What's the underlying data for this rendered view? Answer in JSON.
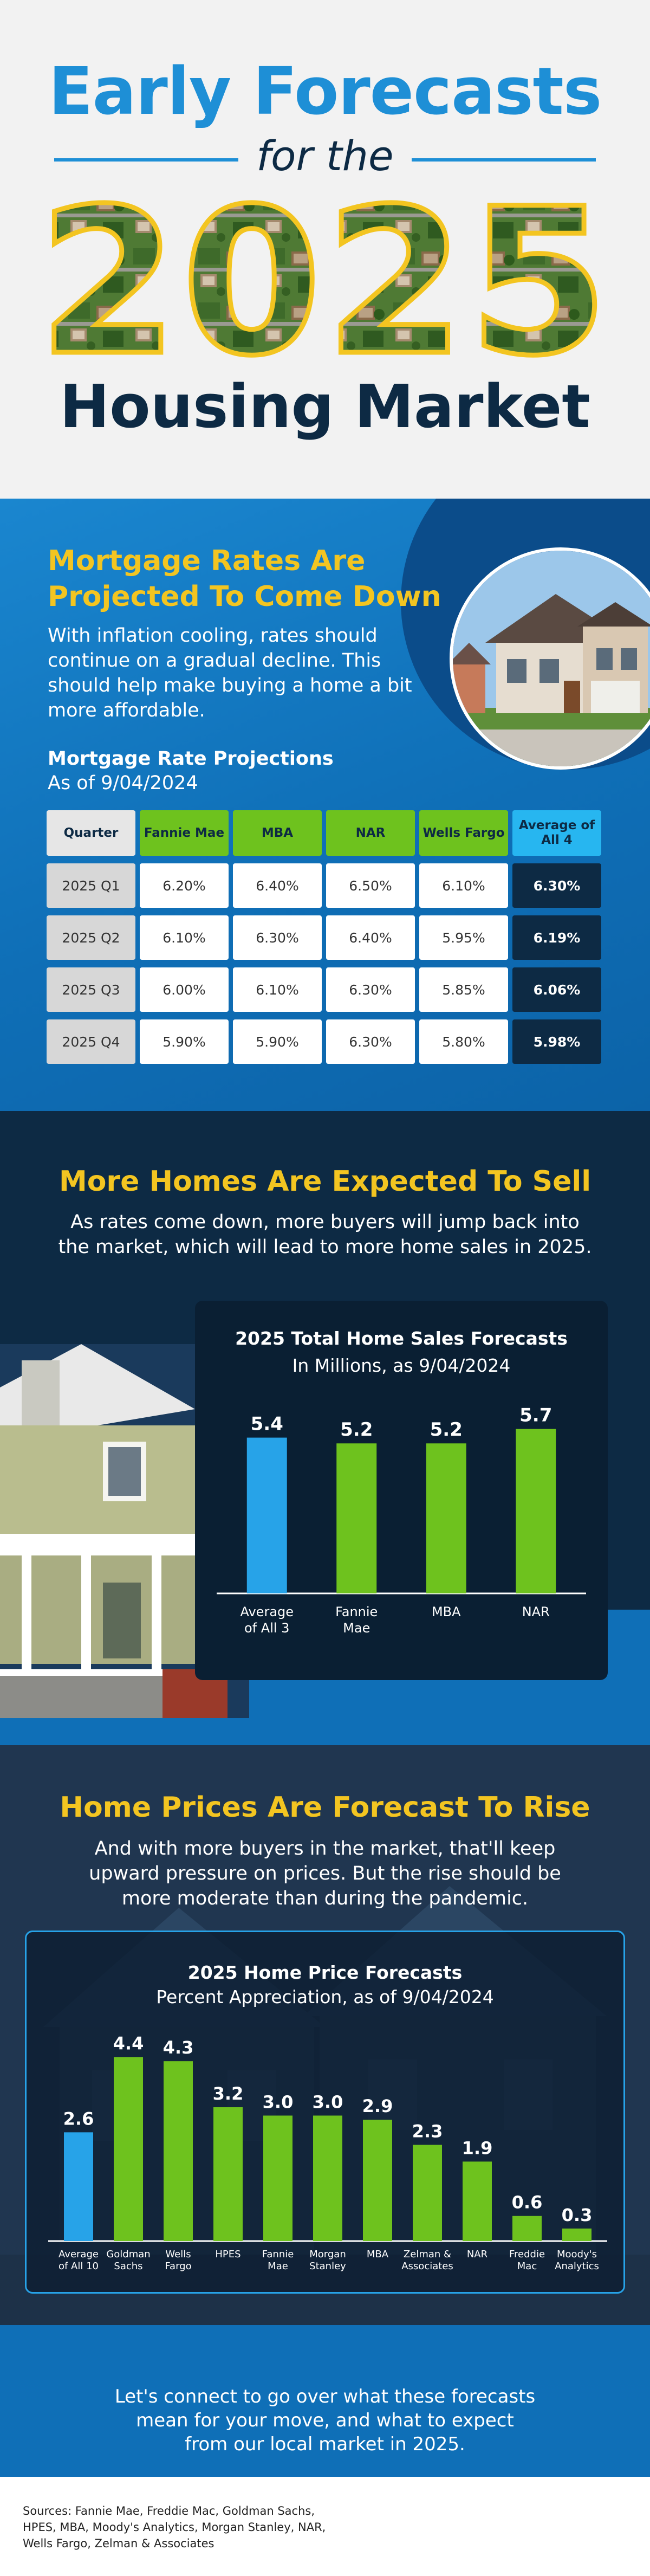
{
  "header": {
    "line1": "Early Forecasts",
    "line2": "for the",
    "year": "2025",
    "line3": "Housing Market"
  },
  "mortgage": {
    "title_line1": "Mortgage Rates Are",
    "title_line2": "Projected To Come Down",
    "body": "With inflation cooling, rates should continue on a gradual decline. This should help make buying a home a bit more affordable.",
    "table_title": "Mortgage Rate Projections",
    "table_subtitle": "As of 9/04/2024",
    "columns": [
      "Quarter",
      "Fannie Mae",
      "MBA",
      "NAR",
      "Wells Fargo",
      "Average of All 4"
    ],
    "rows": [
      [
        "2025 Q1",
        "6.20%",
        "6.40%",
        "6.50%",
        "6.10%",
        "6.30%"
      ],
      [
        "2025 Q2",
        "6.10%",
        "6.30%",
        "6.40%",
        "5.95%",
        "6.19%"
      ],
      [
        "2025 Q3",
        "6.00%",
        "6.10%",
        "6.30%",
        "5.85%",
        "6.06%"
      ],
      [
        "2025 Q4",
        "5.90%",
        "5.90%",
        "6.30%",
        "5.80%",
        "5.98%"
      ]
    ]
  },
  "sales": {
    "title": "More Homes Are Expected To Sell",
    "body_line1": "As rates come down, more buyers will jump back into",
    "body_line2": "the market, which will lead to more home sales in 2025."
  },
  "prices": {
    "title": "Home Prices Are Forecast To Rise",
    "body_line1": "And with more buyers in the market, that'll keep",
    "body_line2": "upward pressure on prices. But the rise should be",
    "body_line3": "more moderate than during the pandemic."
  },
  "footer": {
    "cta_line1": "Let's connect to go over what these forecasts",
    "cta_line2": "mean for your move, and what to expect",
    "cta_line3": "from our local market in 2025.",
    "sources_line1": "Sources: Fannie Mae, Freddie Mac, Goldman Sachs,",
    "sources_line2": "HPES, MBA, Moody's Analytics, Morgan Stanley, NAR,",
    "sources_line3": "Wells Fargo, Zelman & Associates"
  },
  "colors": {
    "average": "#27a3e8",
    "source": "#6ec21e",
    "accent_yellow": "#f3c521",
    "navy": "#0d2a44"
  },
  "chart_data": [
    {
      "type": "bar",
      "title": "2025 Total Home Sales Forecasts",
      "subtitle": "In Millions, as 9/04/2024",
      "categories": [
        [
          "Average",
          "of All 3"
        ],
        [
          "Fannie",
          "Mae"
        ],
        [
          "MBA"
        ],
        [
          "NAR"
        ]
      ],
      "values": [
        5.4,
        5.2,
        5.2,
        5.7
      ],
      "value_labels": [
        "5.4",
        "5.2",
        "5.2",
        "5.7"
      ],
      "highlight_index": 0,
      "ylim": [
        0,
        6.2
      ]
    },
    {
      "type": "bar",
      "title": "2025 Home Price Forecasts",
      "subtitle": "Percent Appreciation, as of 9/04/2024",
      "categories": [
        [
          "Average",
          "of All 10"
        ],
        [
          "Goldman",
          "Sachs"
        ],
        [
          "Wells",
          "Fargo"
        ],
        [
          "HPES"
        ],
        [
          "Fannie",
          "Mae"
        ],
        [
          "Morgan",
          "Stanley"
        ],
        [
          "MBA"
        ],
        [
          "Zelman &",
          "Associates"
        ],
        [
          "NAR"
        ],
        [
          "Freddie",
          "Mac"
        ],
        [
          "Moody's",
          "Analytics"
        ]
      ],
      "values": [
        2.6,
        4.4,
        4.3,
        3.2,
        3.0,
        3.0,
        2.9,
        2.3,
        1.9,
        0.6,
        0.3
      ],
      "value_labels": [
        "2.6",
        "4.4",
        "4.3",
        "3.2",
        "3.0",
        "3.0",
        "2.9",
        "2.3",
        "1.9",
        "0.6",
        "0.3"
      ],
      "highlight_index": 0,
      "ylim": [
        0,
        4.6
      ]
    }
  ]
}
